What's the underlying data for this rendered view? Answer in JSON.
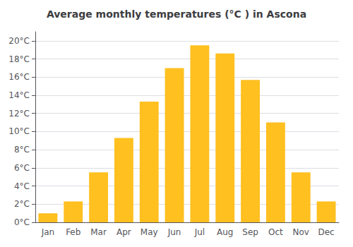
{
  "chart_data": {
    "type": "bar",
    "title": "Average monthly temperatures (°C ) in Ascona",
    "categories": [
      "Jan",
      "Feb",
      "Mar",
      "Apr",
      "May",
      "Jun",
      "Jul",
      "Aug",
      "Sep",
      "Oct",
      "Nov",
      "Dec"
    ],
    "values": [
      1.0,
      2.3,
      5.5,
      9.3,
      13.3,
      17.0,
      19.5,
      18.6,
      15.7,
      11.0,
      5.5,
      2.3
    ],
    "color": "#FFC020",
    "ylim": [
      0,
      21
    ],
    "yticks": [
      {
        "value": 0,
        "label": "0°C"
      },
      {
        "value": 2,
        "label": "2°C"
      },
      {
        "value": 4,
        "label": "4°C"
      },
      {
        "value": 6,
        "label": "6°C"
      },
      {
        "value": 8,
        "label": "8°C"
      },
      {
        "value": 10,
        "label": "10°C"
      },
      {
        "value": 12,
        "label": "12°C"
      },
      {
        "value": 14,
        "label": "14°C"
      },
      {
        "value": 16,
        "label": "16°C"
      },
      {
        "value": 18,
        "label": "18°C"
      },
      {
        "value": 20,
        "label": "20°C"
      }
    ],
    "grid": true
  }
}
